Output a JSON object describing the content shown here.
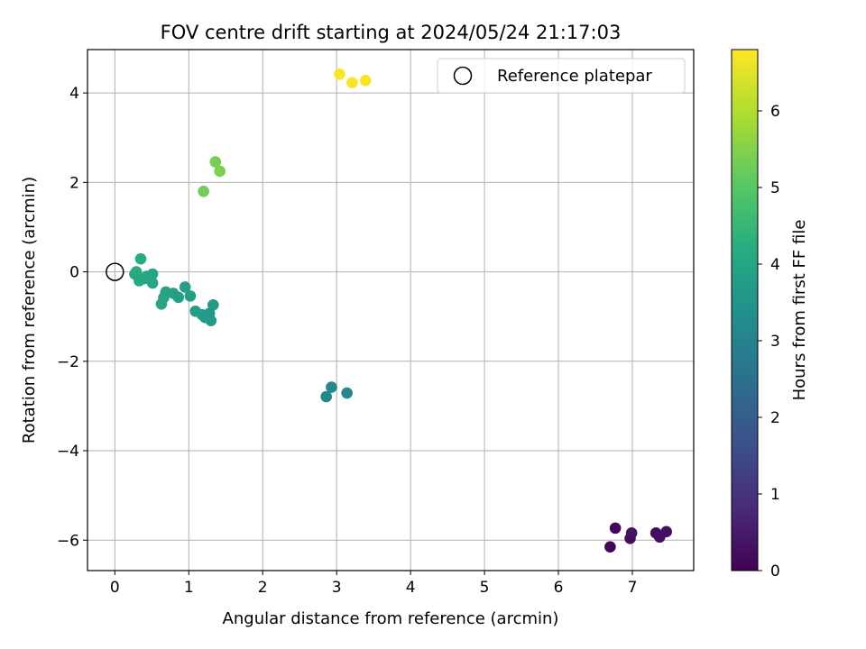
{
  "chart_data": {
    "type": "scatter",
    "title": "FOV centre drift starting at 2024/05/24 21:17:03",
    "xlabel": "Angular distance from reference (arcmin)",
    "ylabel": "Rotation from reference (arcmin)",
    "xlim": [
      -0.37,
      7.83
    ],
    "ylim": [
      -6.68,
      4.97
    ],
    "xticks": [
      0,
      1,
      2,
      3,
      4,
      5,
      6,
      7
    ],
    "yticks": [
      -6,
      -4,
      -2,
      0,
      2,
      4
    ],
    "xtick_labels": [
      "0",
      "1",
      "2",
      "3",
      "4",
      "5",
      "6",
      "7"
    ],
    "ytick_labels": [
      "−6",
      "−4",
      "−2",
      "0",
      "2",
      "4"
    ],
    "grid": true,
    "legend": {
      "placement": "upper-right",
      "entries": [
        {
          "label": "Reference platepar",
          "marker": "open-circle"
        }
      ]
    },
    "reference_point": {
      "x": 0,
      "y": 0
    },
    "colormap": "viridis",
    "colorbar": {
      "label": "Hours from first FF file",
      "min": 0,
      "max": 6.8,
      "ticks": [
        0,
        1,
        2,
        3,
        4,
        5,
        6
      ],
      "tick_labels": [
        "0",
        "1",
        "2",
        "3",
        "4",
        "5",
        "6"
      ]
    },
    "points": [
      {
        "x": 6.7,
        "y": -6.15,
        "c": 0.1
      },
      {
        "x": 6.77,
        "y": -5.73,
        "c": 0.15
      },
      {
        "x": 6.97,
        "y": -5.96,
        "c": 0.25
      },
      {
        "x": 6.99,
        "y": -5.84,
        "c": 0.3
      },
      {
        "x": 7.32,
        "y": -5.84,
        "c": 0.2
      },
      {
        "x": 7.37,
        "y": -5.93,
        "c": 0.25
      },
      {
        "x": 7.46,
        "y": -5.81,
        "c": 0.25
      },
      {
        "x": 2.86,
        "y": -2.79,
        "c": 3.15
      },
      {
        "x": 2.93,
        "y": -2.58,
        "c": 3.2
      },
      {
        "x": 3.14,
        "y": -2.71,
        "c": 3.15
      },
      {
        "x": 0.27,
        "y": -0.05,
        "c": 4.05
      },
      {
        "x": 0.29,
        "y": 0.0,
        "c": 4.1
      },
      {
        "x": 0.33,
        "y": -0.2,
        "c": 4.1
      },
      {
        "x": 0.35,
        "y": 0.29,
        "c": 4.2
      },
      {
        "x": 0.4,
        "y": -0.15,
        "c": 4.0
      },
      {
        "x": 0.43,
        "y": -0.1,
        "c": 4.05
      },
      {
        "x": 0.51,
        "y": -0.25,
        "c": 4.0
      },
      {
        "x": 0.51,
        "y": -0.05,
        "c": 4.0
      },
      {
        "x": 0.63,
        "y": -0.72,
        "c": 3.95
      },
      {
        "x": 0.66,
        "y": -0.58,
        "c": 3.95
      },
      {
        "x": 0.69,
        "y": -0.45,
        "c": 3.9
      },
      {
        "x": 0.79,
        "y": -0.48,
        "c": 3.85
      },
      {
        "x": 0.86,
        "y": -0.57,
        "c": 3.85
      },
      {
        "x": 0.95,
        "y": -0.34,
        "c": 3.8
      },
      {
        "x": 1.02,
        "y": -0.54,
        "c": 3.8
      },
      {
        "x": 1.09,
        "y": -0.88,
        "c": 3.75
      },
      {
        "x": 1.18,
        "y": -0.96,
        "c": 3.75
      },
      {
        "x": 1.22,
        "y": -1.02,
        "c": 3.7
      },
      {
        "x": 1.28,
        "y": -0.93,
        "c": 3.7
      },
      {
        "x": 1.3,
        "y": -1.09,
        "c": 3.7
      },
      {
        "x": 1.33,
        "y": -0.74,
        "c": 3.7
      },
      {
        "x": 1.2,
        "y": 1.8,
        "c": 5.3
      },
      {
        "x": 1.36,
        "y": 2.46,
        "c": 5.35
      },
      {
        "x": 1.42,
        "y": 2.25,
        "c": 5.4
      },
      {
        "x": 3.04,
        "y": 4.42,
        "c": 6.75
      },
      {
        "x": 3.21,
        "y": 4.23,
        "c": 6.75
      },
      {
        "x": 3.39,
        "y": 4.28,
        "c": 6.75
      }
    ]
  }
}
